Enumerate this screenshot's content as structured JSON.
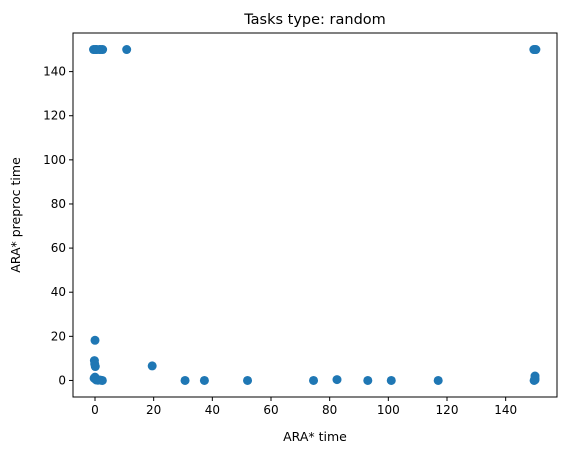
{
  "chart_data": {
    "type": "scatter",
    "title": "Tasks type: random",
    "xlabel": "ARA* time",
    "ylabel": "ARA* preproc time",
    "xlim": [
      -7.5,
      157.5
    ],
    "ylim": [
      -7.5,
      157.5
    ],
    "xticks": [
      0,
      20,
      40,
      60,
      80,
      100,
      120,
      140
    ],
    "yticks": [
      0,
      20,
      40,
      60,
      80,
      100,
      120,
      140
    ],
    "grid": false,
    "marker_color": "#1f77b4",
    "series": [
      {
        "points": [
          [
            -0.5,
            150
          ],
          [
            0,
            150
          ],
          [
            0.3,
            150
          ],
          [
            0.6,
            150
          ],
          [
            1.5,
            150
          ],
          [
            2.0,
            150
          ],
          [
            2.6,
            150
          ],
          [
            10.8,
            150
          ],
          [
            149.6,
            150
          ],
          [
            150,
            150
          ],
          [
            150.3,
            150
          ],
          [
            0,
            18.2
          ],
          [
            -0.2,
            9.0
          ],
          [
            -0.1,
            7.5
          ],
          [
            0.1,
            6.3
          ],
          [
            0,
            1.5
          ],
          [
            -0.3,
            1.0
          ],
          [
            0.2,
            0.5
          ],
          [
            0.5,
            0.2
          ],
          [
            1.0,
            0.1
          ],
          [
            1.5,
            0.2
          ],
          [
            2.0,
            0.1
          ],
          [
            2.5,
            0
          ],
          [
            19.5,
            6.6
          ],
          [
            30.7,
            0
          ],
          [
            37.3,
            0
          ],
          [
            52.0,
            0
          ],
          [
            74.5,
            0
          ],
          [
            82.5,
            0.4
          ],
          [
            93.0,
            0
          ],
          [
            101.0,
            0
          ],
          [
            117.0,
            0
          ],
          [
            150,
            2.0
          ],
          [
            150,
            1.0
          ],
          [
            150,
            0.3
          ],
          [
            149.7,
            0
          ]
        ]
      }
    ]
  }
}
